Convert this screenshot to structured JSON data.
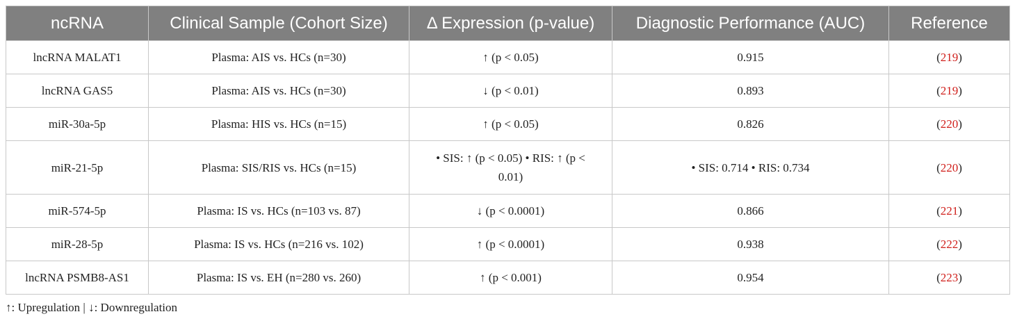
{
  "table": {
    "headers": [
      "ncRNA",
      "Clinical Sample (Cohort Size)",
      "Δ Expression (p-value)",
      "Diagnostic Performance (AUC)",
      "Reference"
    ],
    "rows": [
      [
        "lncRNA MALAT1",
        "Plasma: AIS vs. HCs (n=30)",
        "↑ (p < 0.05)",
        0.915,
        "(219)"
      ],
      [
        "lncRNA GAS5",
        "Plasma: AIS vs. HCs (n=30)",
        "↓ (p < 0.01)",
        0.893,
        "(219)"
      ],
      [
        "miR-30a-5p",
        "Plasma: HIS vs. HCs (n=15)",
        "↑ (p < 0.05)",
        0.826,
        "(220)"
      ],
      [
        "miR-21-5p",
        "Plasma: SIS/RIS vs. HCs (n=15)",
        "• SIS: ↑ (p < 0.05) • RIS: ↑ (p < 0.01)",
        "• SIS: 0.714 • RIS: 0.734",
        "(220)"
      ],
      [
        "miR-574-5p",
        "Plasma: IS vs. HCs (n=103 vs. 87)",
        "↓ (p < 0.0001)",
        0.866,
        "(221)"
      ],
      [
        "miR-28-5p",
        "Plasma: IS vs. HCs (n=216 vs. 102)",
        "↑ (p < 0.0001)",
        0.938,
        "(222)"
      ],
      [
        "lncRNA PSMB8-AS1",
        "Plasma: IS vs. EH (n=280 vs. 260)",
        "↑ (p < 0.001)",
        0.954,
        "(223)"
      ]
    ]
  },
  "footnote": "↑: Upregulation | ↓: Downregulation"
}
